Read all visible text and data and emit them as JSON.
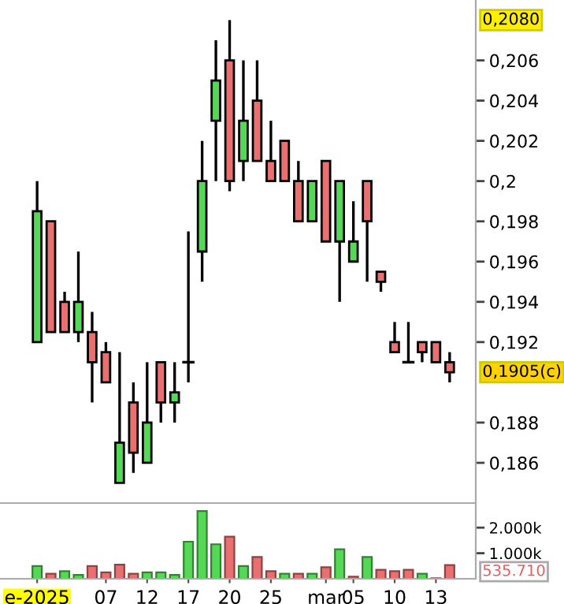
{
  "chart_data": [
    {
      "type": "candlestick",
      "categories": [
        null,
        null,
        null,
        null,
        null,
        null,
        null,
        null,
        null,
        null,
        null,
        null,
        null,
        null,
        null,
        null,
        null,
        null,
        null,
        null,
        null,
        null,
        null,
        null,
        null,
        null,
        null,
        null,
        null,
        null,
        null
      ],
      "ohlc": [
        [
          0.192,
          0.2,
          0.192,
          0.1985
        ],
        [
          0.198,
          0.198,
          0.1925,
          0.1925
        ],
        [
          0.194,
          0.1945,
          0.1925,
          0.1925
        ],
        [
          0.1925,
          0.1965,
          0.192,
          0.194
        ],
        [
          0.1925,
          0.1935,
          0.189,
          0.191
        ],
        [
          0.1915,
          0.192,
          0.19,
          0.19
        ],
        [
          0.185,
          0.1915,
          0.185,
          0.187
        ],
        [
          0.189,
          0.19,
          0.1855,
          0.1865
        ],
        [
          0.186,
          0.191,
          0.186,
          0.188
        ],
        [
          0.191,
          0.191,
          0.188,
          0.189
        ],
        [
          0.189,
          0.191,
          0.188,
          0.1895
        ],
        [
          0.191,
          0.1975,
          0.19,
          0.191
        ],
        [
          0.1965,
          0.202,
          0.195,
          0.2
        ],
        [
          0.203,
          0.207,
          0.2,
          0.205
        ],
        [
          0.206,
          0.208,
          0.1995,
          0.2
        ],
        [
          0.201,
          0.206,
          0.2,
          0.203
        ],
        [
          0.204,
          0.206,
          0.201,
          0.201
        ],
        [
          0.201,
          0.203,
          0.2,
          0.2
        ],
        [
          0.202,
          0.202,
          0.2,
          0.2
        ],
        [
          0.2,
          0.201,
          0.198,
          0.198
        ],
        [
          0.198,
          0.2,
          0.198,
          0.2
        ],
        [
          0.201,
          0.201,
          0.197,
          0.197
        ],
        [
          0.197,
          0.2,
          0.194,
          0.2
        ],
        [
          0.196,
          0.199,
          0.196,
          0.197
        ],
        [
          0.2,
          0.2,
          0.195,
          0.198
        ],
        [
          0.1955,
          0.1955,
          0.1945,
          0.195
        ],
        [
          0.192,
          0.193,
          0.1915,
          0.1915
        ],
        [
          0.191,
          0.193,
          0.191,
          0.191
        ],
        [
          0.192,
          0.192,
          0.191,
          0.1915
        ],
        [
          0.192,
          0.192,
          0.191,
          0.191
        ],
        [
          0.191,
          0.1915,
          0.19,
          0.1905
        ]
      ],
      "colors": [
        "#55d855",
        "#e87070",
        "#e87070",
        "#55d855",
        "#e87070",
        "#e87070",
        "#55d855",
        "#e87070",
        "#55d855",
        "#e87070",
        "#55d855",
        "#000000",
        "#55d855",
        "#55d855",
        "#e87070",
        "#55d855",
        "#e87070",
        "#e87070",
        "#e87070",
        "#e87070",
        "#55d855",
        "#e87070",
        "#55d855",
        "#55d855",
        "#e87070",
        "#e87070",
        "#e87070",
        "#000000",
        "#e87070",
        "#e87070",
        "#e87070"
      ],
      "ylim": [
        0.184,
        0.209
      ],
      "yticks": [
        {
          "value": 0.186,
          "label": "0,186"
        },
        {
          "value": 0.188,
          "label": "0,188"
        },
        {
          "value": 0.192,
          "label": "0,192"
        },
        {
          "value": 0.194,
          "label": "0,194"
        },
        {
          "value": 0.196,
          "label": "0,196"
        },
        {
          "value": 0.198,
          "label": "0,198"
        },
        {
          "value": 0.2,
          "label": "0,2"
        },
        {
          "value": 0.202,
          "label": "0,202"
        },
        {
          "value": 0.204,
          "label": "0,204"
        },
        {
          "value": 0.206,
          "label": "0,206"
        }
      ],
      "annotations": [
        "0,2080",
        "0,1905(c)"
      ],
      "tick_labels": "y",
      "grid": false
    },
    {
      "type": "bar",
      "categories": [
        "e-2025",
        null,
        null,
        null,
        null,
        "07",
        null,
        null,
        "12",
        null,
        null,
        "17",
        null,
        null,
        "20",
        null,
        null,
        "25",
        null,
        null,
        null,
        "mar",
        null,
        "05",
        null,
        null,
        "10",
        null,
        null,
        "13",
        null
      ],
      "values": [
        500,
        200,
        300,
        150,
        500,
        250,
        550,
        200,
        250,
        250,
        150,
        1450,
        2650,
        1350,
        1650,
        500,
        850,
        300,
        200,
        200,
        200,
        450,
        1150,
        80,
        850,
        350,
        300,
        350,
        200,
        20,
        535.71
      ],
      "colors": [
        "#55d855",
        "#e87070",
        "#55d855",
        "#55d855",
        "#e87070",
        "#e87070",
        "#e87070",
        "#e87070",
        "#55d855",
        "#55d855",
        "#55d855",
        "#55d855",
        "#55d855",
        "#55d855",
        "#e87070",
        "#55d855",
        "#e87070",
        "#e87070",
        "#55d855",
        "#e87070",
        "#55d855",
        "#e87070",
        "#55d855",
        "#e87070",
        "#55d855",
        "#e87070",
        "#e87070",
        "#e87070",
        "#55d855",
        "#e87070",
        "#e87070"
      ],
      "ylim": [
        0,
        2900
      ],
      "yticks": [
        {
          "value": 1000,
          "label": "1.000k"
        },
        {
          "value": 2000,
          "label": "2.000k"
        }
      ],
      "annotations": [
        "535.710"
      ],
      "grid": false
    }
  ]
}
